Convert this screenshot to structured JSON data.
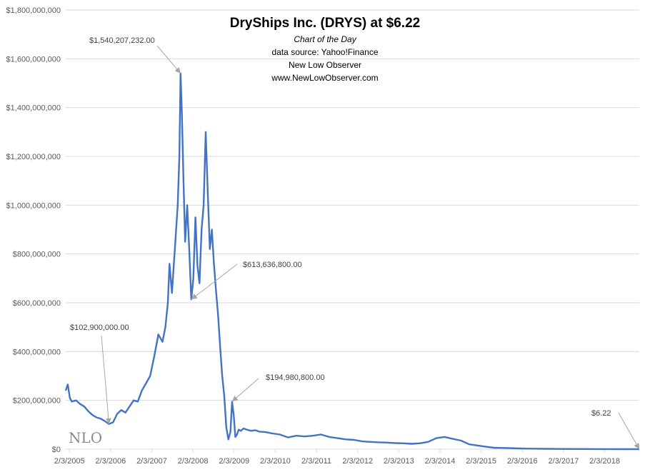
{
  "header": {
    "title": "DryShips  Inc. (DRYS) at $6.22",
    "subtitle": "Chart of the Day",
    "source": "data source: Yahoo!Finance",
    "publisher": "New Low Observer",
    "website": "www.NewLowObserver.com"
  },
  "logo": {
    "text": "NLO"
  },
  "colors": {
    "line": "#4472C4",
    "grid": "#d9d9d9",
    "axis_text": "#595959",
    "annotation_arrow": "#a6a6a6"
  },
  "chart_data": {
    "type": "line",
    "title": "DryShips  Inc. (DRYS) at $6.22",
    "xlabel": "",
    "ylabel": "",
    "ylim": [
      0,
      1800000000
    ],
    "y_ticks": [
      0,
      200000000,
      400000000,
      600000000,
      800000000,
      1000000000,
      1200000000,
      1400000000,
      1600000000,
      1800000000
    ],
    "y_tick_labels": [
      "$0",
      "$200,000,000",
      "$400,000,000",
      "$600,000,000",
      "$800,000,000",
      "$1,000,000,000",
      "$1,200,000,000",
      "$1,400,000,000",
      "$1,600,000,000",
      "$1,800,000,000"
    ],
    "x_tick_labels": [
      "2/3/2005",
      "2/3/2006",
      "2/3/2007",
      "2/3/2008",
      "2/3/2009",
      "2/3/2010",
      "2/3/2011",
      "2/3/2012",
      "2/3/2013",
      "2/3/2014",
      "2/3/2015",
      "2/3/2016",
      "2/3/2017",
      "2/3/2018"
    ],
    "x_tick_values": [
      2005.09,
      2006.09,
      2007.09,
      2008.09,
      2009.09,
      2010.09,
      2011.09,
      2012.09,
      2013.09,
      2014.09,
      2015.09,
      2016.09,
      2017.09,
      2018.09
    ],
    "xlim": [
      2005.0,
      2018.93
    ],
    "grid": "horizontal",
    "legend": "none",
    "series": [
      {
        "x": [
          2005.0,
          2005.05,
          2005.1,
          2005.15,
          2005.25,
          2005.35,
          2005.45,
          2005.55,
          2005.65,
          2005.75,
          2005.85,
          2005.95,
          2006.05,
          2006.15,
          2006.25,
          2006.35,
          2006.45,
          2006.55,
          2006.65,
          2006.75,
          2006.85,
          2006.95,
          2007.05,
          2007.15,
          2007.25,
          2007.35,
          2007.42,
          2007.48,
          2007.52,
          2007.58,
          2007.65,
          2007.72,
          2007.76,
          2007.79,
          2007.82,
          2007.86,
          2007.9,
          2007.95,
          2008.0,
          2008.05,
          2008.1,
          2008.15,
          2008.2,
          2008.25,
          2008.3,
          2008.35,
          2008.4,
          2008.45,
          2008.5,
          2008.55,
          2008.6,
          2008.65,
          2008.7,
          2008.75,
          2008.8,
          2008.85,
          2008.9,
          2008.95,
          2009.0,
          2009.04,
          2009.08,
          2009.12,
          2009.16,
          2009.2,
          2009.25,
          2009.32,
          2009.4,
          2009.5,
          2009.6,
          2009.7,
          2009.85,
          2010.0,
          2010.2,
          2010.4,
          2010.6,
          2010.8,
          2011.0,
          2011.2,
          2011.4,
          2011.6,
          2011.8,
          2012.0,
          2012.2,
          2012.4,
          2012.6,
          2012.8,
          2013.0,
          2013.2,
          2013.4,
          2013.6,
          2013.8,
          2014.0,
          2014.2,
          2014.4,
          2014.6,
          2014.8,
          2015.0,
          2015.2,
          2015.4,
          2015.6,
          2015.8,
          2016.0,
          2016.3,
          2016.6,
          2017.0,
          2017.5,
          2018.0,
          2018.5,
          2018.93
        ],
        "y": [
          240000000,
          265000000,
          210000000,
          195000000,
          200000000,
          185000000,
          175000000,
          155000000,
          140000000,
          130000000,
          125000000,
          115000000,
          102900000,
          110000000,
          145000000,
          160000000,
          150000000,
          175000000,
          200000000,
          195000000,
          240000000,
          270000000,
          300000000,
          380000000,
          470000000,
          440000000,
          500000000,
          600000000,
          760000000,
          640000000,
          820000000,
          1000000000,
          1200000000,
          1540207232,
          1380000000,
          1100000000,
          850000000,
          1000000000,
          820000000,
          613636800,
          700000000,
          950000000,
          750000000,
          680000000,
          900000000,
          1000000000,
          1300000000,
          1050000000,
          820000000,
          900000000,
          760000000,
          650000000,
          550000000,
          420000000,
          300000000,
          220000000,
          90000000,
          40000000,
          70000000,
          194980800,
          140000000,
          50000000,
          60000000,
          80000000,
          75000000,
          85000000,
          80000000,
          75000000,
          78000000,
          72000000,
          70000000,
          65000000,
          60000000,
          48000000,
          55000000,
          52000000,
          55000000,
          60000000,
          50000000,
          45000000,
          40000000,
          38000000,
          32000000,
          30000000,
          28000000,
          27000000,
          25000000,
          24000000,
          22000000,
          24000000,
          30000000,
          45000000,
          50000000,
          42000000,
          35000000,
          20000000,
          15000000,
          10000000,
          6000000,
          5000000,
          4000000,
          3000000,
          2000000,
          1500000,
          1000000,
          600000,
          300000,
          100000,
          6.22
        ]
      }
    ],
    "annotations": [
      {
        "label": "$1,540,207,232.00",
        "x": 2007.79,
        "y": 1540207232
      },
      {
        "label": "$613,636,800.00",
        "x": 2008.05,
        "y": 613636800
      },
      {
        "label": "$102,900,000.00",
        "x": 2006.05,
        "y": 102900000
      },
      {
        "label": "$194,980,800.00",
        "x": 2009.04,
        "y": 194980800
      },
      {
        "label": "$6.22",
        "x": 2018.93,
        "y": 6.22
      }
    ]
  }
}
